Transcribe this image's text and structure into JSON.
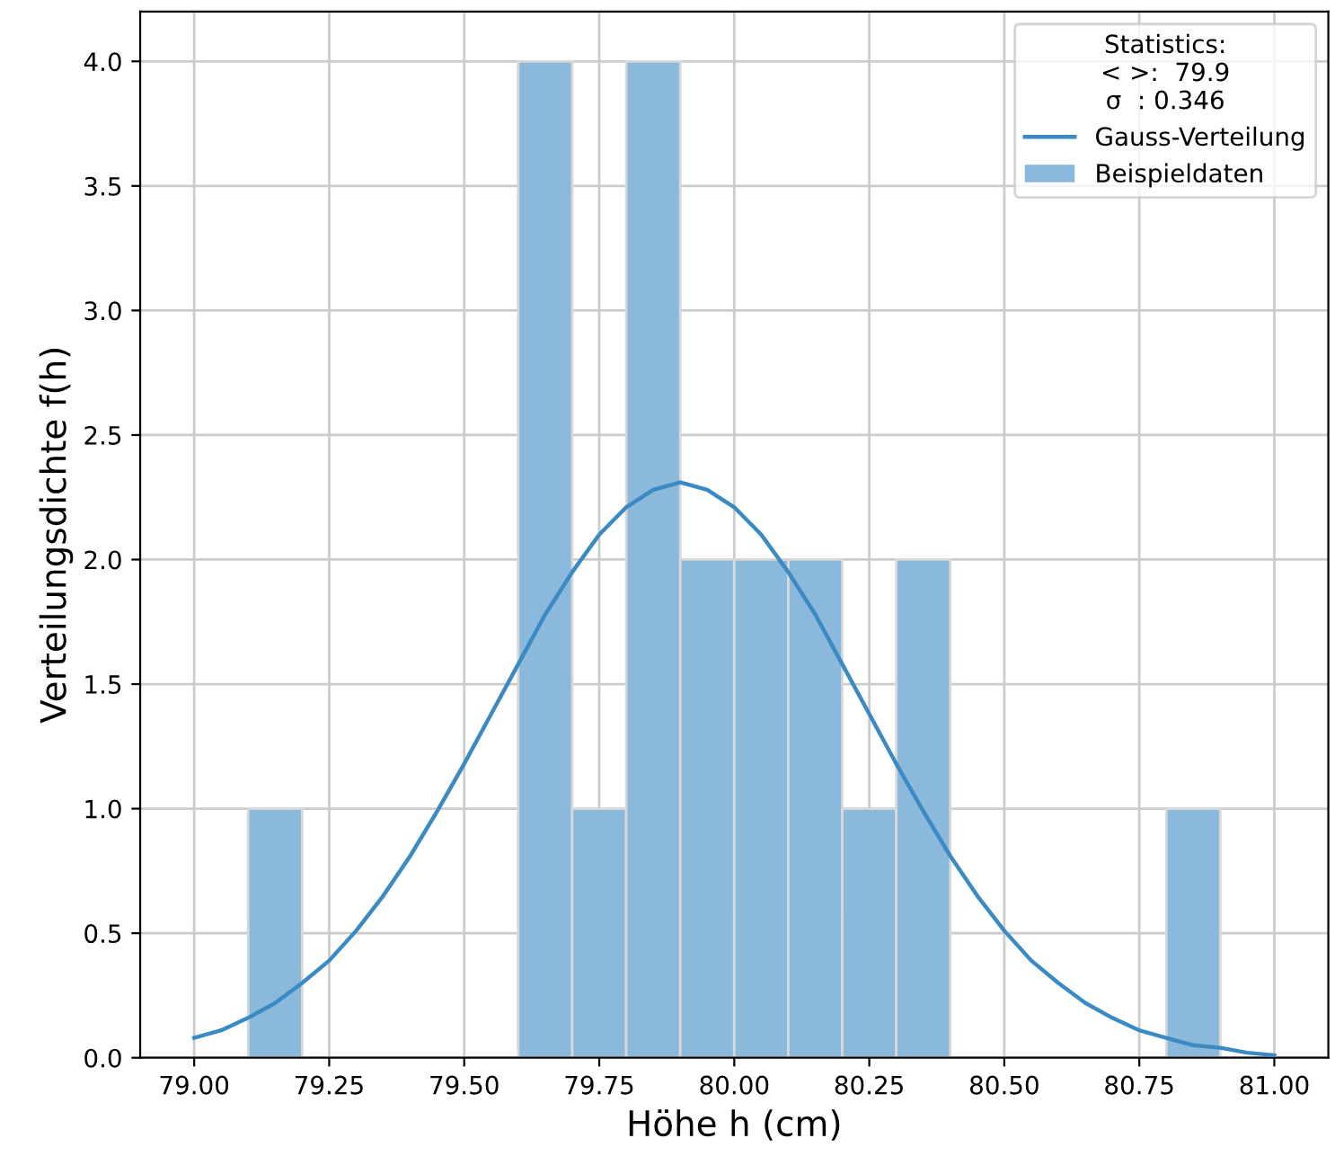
{
  "chart_data": {
    "type": "histogram",
    "xlabel": "Höhe h (cm)",
    "ylabel": "Verteilungsdichte f(h)",
    "legend_title": "Statistics:\n< >:  79.9\nσ  : 0.346",
    "legend": "top right",
    "grid": true,
    "xlim": [
      78.9,
      81.1
    ],
    "ylim": [
      0,
      4.2
    ],
    "xticks": [
      {
        "value": 79.0,
        "label": "79.00"
      },
      {
        "value": 79.25,
        "label": "79.25"
      },
      {
        "value": 79.5,
        "label": "79.50"
      },
      {
        "value": 79.75,
        "label": "79.75"
      },
      {
        "value": 80.0,
        "label": "80.00"
      },
      {
        "value": 80.25,
        "label": "80.25"
      },
      {
        "value": 80.5,
        "label": "80.50"
      },
      {
        "value": 80.75,
        "label": "80.75"
      },
      {
        "value": 81.0,
        "label": "81.00"
      }
    ],
    "yticks": [
      {
        "value": 0,
        "label": "0.0"
      },
      {
        "value": 0.5,
        "label": "0.5"
      },
      {
        "value": 1,
        "label": "1.0"
      },
      {
        "value": 1.5,
        "label": "1.5"
      },
      {
        "value": 2,
        "label": "2.0"
      },
      {
        "value": 2.5,
        "label": "2.5"
      },
      {
        "value": 3,
        "label": "3.0"
      },
      {
        "value": 3.5,
        "label": "3.5"
      },
      {
        "value": 4,
        "label": "4.0"
      }
    ],
    "series": [
      {
        "name": "Gauss-Verteilung",
        "type": "line",
        "color": "#3a8ac4",
        "x": [
          79.0,
          79.05,
          79.1,
          79.15,
          79.2,
          79.25,
          79.3,
          79.35,
          79.4,
          79.45,
          79.5,
          79.55,
          79.6,
          79.65,
          79.7,
          79.75,
          79.8,
          79.85,
          79.9,
          79.95,
          80.0,
          80.05,
          80.1,
          80.15,
          80.2,
          80.25,
          80.3,
          80.35,
          80.4,
          80.45,
          80.5,
          80.55,
          80.6,
          80.65,
          80.7,
          80.75,
          80.8,
          80.85,
          80.9,
          80.95,
          81.0
        ],
        "values": [
          0.08,
          0.11,
          0.16,
          0.22,
          0.3,
          0.39,
          0.51,
          0.65,
          0.81,
          0.99,
          1.18,
          1.38,
          1.58,
          1.78,
          1.95,
          2.1,
          2.21,
          2.28,
          2.31,
          2.28,
          2.21,
          2.1,
          1.95,
          1.78,
          1.58,
          1.38,
          1.18,
          0.99,
          0.81,
          0.65,
          0.51,
          0.39,
          0.3,
          0.22,
          0.16,
          0.11,
          0.08,
          0.05,
          0.04,
          0.02,
          0.01
        ]
      },
      {
        "name": "Beispieldaten",
        "color": "#8bb9db",
        "bins": [
          79.0,
          79.1,
          79.2,
          79.3,
          79.4,
          79.5,
          79.6,
          79.7,
          79.8,
          79.9,
          80.0,
          80.1,
          80.2,
          80.3,
          80.4,
          80.5,
          80.6,
          80.7,
          80.8,
          80.9,
          81.0
        ],
        "values": [
          0,
          1,
          0,
          0,
          0,
          0,
          4,
          1,
          4,
          2,
          2,
          2,
          1,
          2,
          0,
          0,
          0,
          0,
          1,
          0
        ]
      }
    ]
  }
}
